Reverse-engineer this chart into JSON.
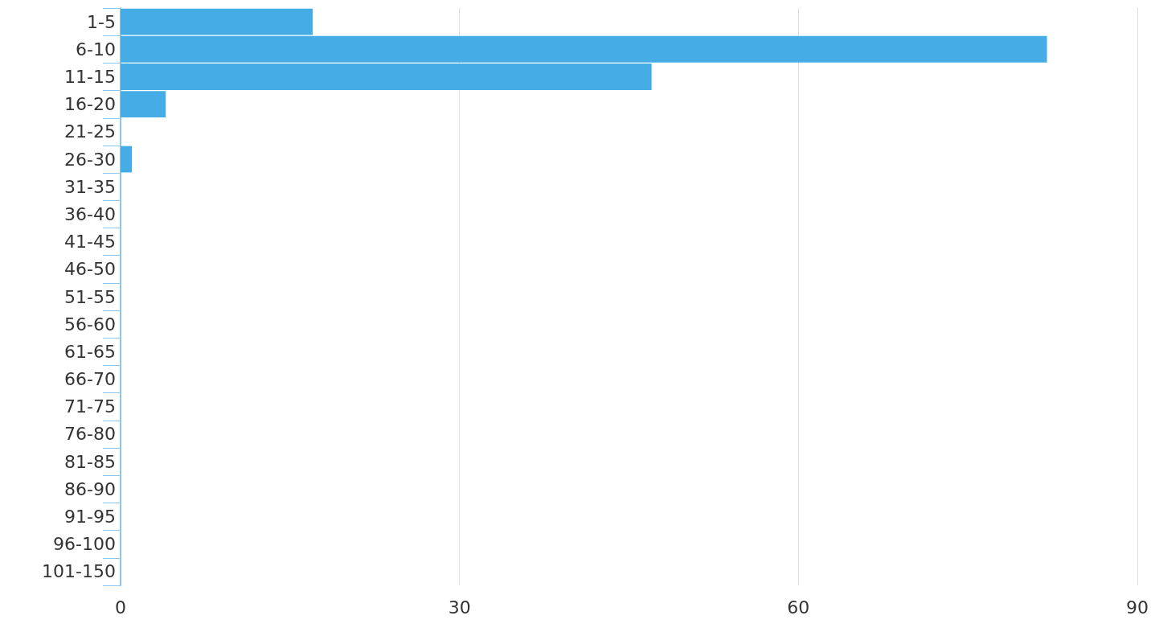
{
  "chart_data": {
    "type": "bar",
    "orientation": "horizontal",
    "categories": [
      "1-5",
      "6-10",
      "11-15",
      "16-20",
      "21-25",
      "26-30",
      "31-35",
      "36-40",
      "41-45",
      "46-50",
      "51-55",
      "56-60",
      "61-65",
      "66-70",
      "71-75",
      "76-80",
      "81-85",
      "86-90",
      "91-95",
      "96-100",
      "101-150"
    ],
    "values": [
      17,
      82,
      47,
      4,
      0,
      1,
      0,
      0,
      0,
      0,
      0,
      0,
      0,
      0,
      0,
      0,
      0,
      0,
      0,
      0,
      0
    ],
    "color": "#45ace6",
    "xlim": [
      0,
      90
    ],
    "xticks": [
      0,
      30,
      60,
      90
    ],
    "grid": "x"
  }
}
